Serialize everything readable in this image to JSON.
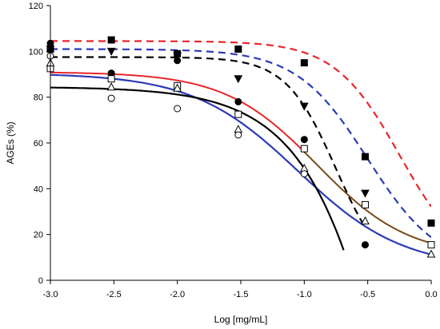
{
  "chart_data": {
    "type": "scatter",
    "xlabel": "Log [mg/mL]",
    "ylabel": "AGEs (%)",
    "xlim": [
      -3.0,
      0.0
    ],
    "ylim": [
      0,
      120
    ],
    "xticks": [
      -3.0,
      -2.5,
      -2.0,
      -1.5,
      -1.0,
      -0.5,
      0.0
    ],
    "xtick_labels": [
      "-3.0",
      "-2.5",
      "-2.0",
      "-1.5",
      "-1.0",
      "-0.5",
      "0.0"
    ],
    "yticks": [
      0,
      20,
      40,
      60,
      80,
      100,
      120
    ],
    "ytick_labels": [
      "0",
      "20",
      "40",
      "60",
      "80",
      "100",
      "120"
    ],
    "grid": false,
    "series": [
      {
        "marker": "filled-square",
        "color": "#000000",
        "x": [
          -3.0,
          -2.52,
          -2.0,
          -1.52,
          -1.0,
          -0.52,
          0.0
        ],
        "y": [
          101,
          105,
          99,
          101,
          95,
          54,
          25
        ],
        "fit": {
          "style": "dashed",
          "color": "#e8262b",
          "top": 104.5,
          "bottom": 5,
          "logEC50": -0.25,
          "hill": 1.7,
          "x_range": [
            -3.0,
            0.0
          ]
        }
      },
      {
        "marker": "filled-triangle-down",
        "color": "#000000",
        "x": [
          -3.0,
          -2.52,
          -2.0,
          -1.52,
          -1.0,
          -0.52
        ],
        "y": [
          101,
          100,
          98,
          88,
          76,
          38
        ],
        "fit": {
          "style": "dashed",
          "color": "#2b3ab8",
          "top": 101,
          "bottom": 5,
          "logEC50": -0.5,
          "hill": 1.55,
          "x_range": [
            -3.0,
            0.0
          ]
        }
      },
      {
        "marker": "filled-circle",
        "color": "#000000",
        "x": [
          -3.0,
          -2.52,
          -2.0,
          -1.52,
          -1.0,
          -0.52
        ],
        "y": [
          103.5,
          90.5,
          96,
          78,
          61.5,
          15.5
        ],
        "fit": {
          "style": "dashed",
          "color": "#000000",
          "top": 97.5,
          "bottom": 0,
          "logEC50": -0.75,
          "hill": 2.2,
          "x_range": [
            -3.0,
            -0.52
          ]
        }
      },
      {
        "marker": "open-square",
        "color": "#000000",
        "x": [
          -3.0,
          -2.52,
          -2.0,
          -1.52,
          -1.0,
          -0.52,
          0.0
        ],
        "y": [
          92.5,
          88,
          85,
          72.5,
          57.5,
          33,
          15.5
        ],
        "fit": {
          "style": "solid",
          "color": "#e8262b",
          "color_segment_2": "#7a4a18",
          "split_x": -1.0,
          "top": 91,
          "bottom": 10,
          "logEC50": -0.9,
          "hill": 1.2,
          "x_range": [
            -3.0,
            0.0
          ]
        }
      },
      {
        "marker": "open-triangle-up",
        "color": "#000000",
        "x": [
          -3.0,
          -2.52,
          -2.0,
          -1.52,
          -1.0,
          -0.52,
          0.0
        ],
        "y": [
          95,
          84.5,
          84,
          66,
          49,
          26,
          11.5
        ],
        "fit": {
          "style": "solid",
          "color": "#2b3ab8",
          "top": 90.5,
          "bottom": 5,
          "logEC50": -1.05,
          "hill": 1.05,
          "x_range": [
            -3.0,
            0.0
          ]
        }
      },
      {
        "marker": "open-circle",
        "color": "#000000",
        "x": [
          -3.0,
          -2.52,
          -2.0,
          -1.52,
          -1.0
        ],
        "y": [
          98,
          79.5,
          75,
          63.5,
          46.5
        ],
        "fit": {
          "style": "solid",
          "color": "#000000",
          "top": 84.5,
          "bottom": -600,
          "logEC50": 0.2,
          "hill": 1.05,
          "x_range": [
            -3.0,
            -0.69
          ]
        }
      }
    ]
  }
}
